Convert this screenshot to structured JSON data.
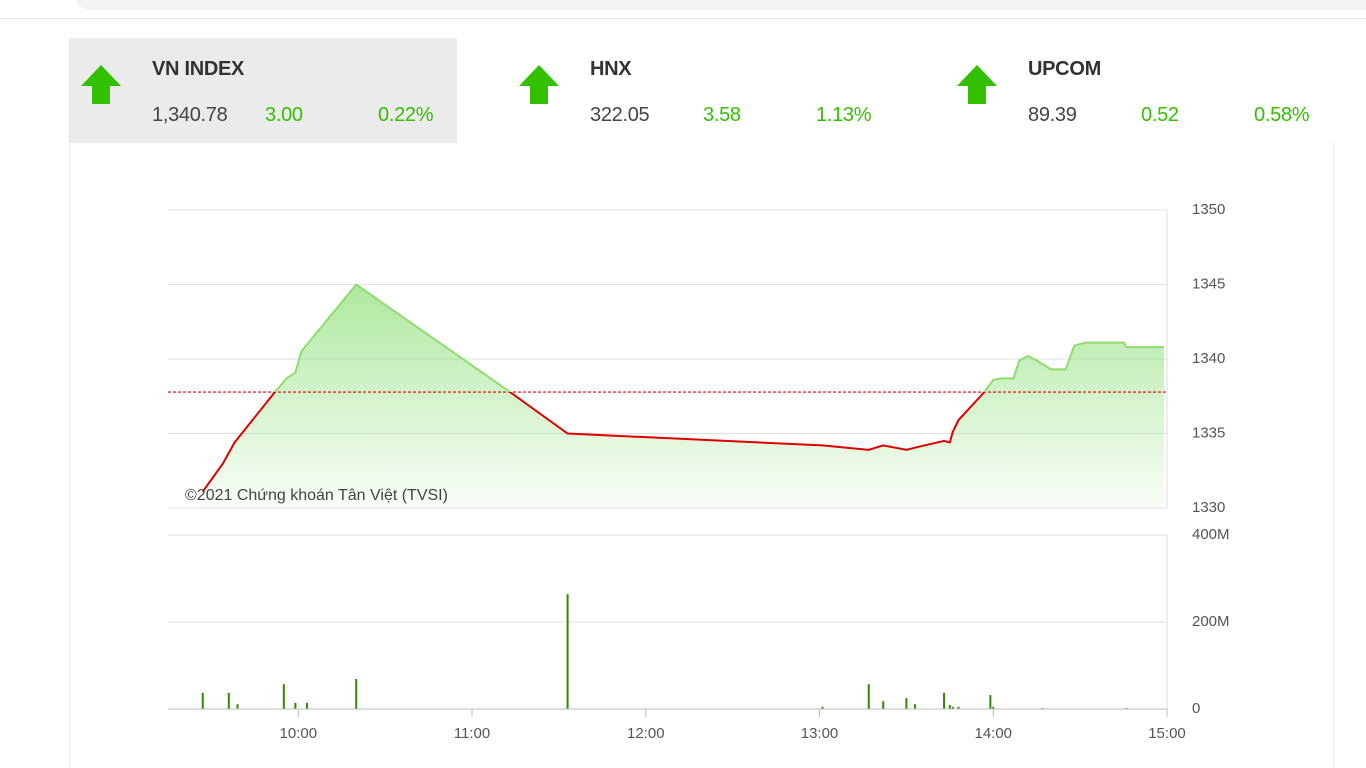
{
  "indices": [
    {
      "name": "VN INDEX",
      "value": "1,340.78",
      "change": "3.00",
      "percent": "0.22%"
    },
    {
      "name": "HNX",
      "value": "322.05",
      "change": "3.58",
      "percent": "1.13%"
    },
    {
      "name": "UPCOM",
      "value": "89.39",
      "change": "0.52",
      "percent": "0.58%"
    }
  ],
  "chart_data": [
    {
      "type": "area",
      "annotation": "©2021 Chứng khoán Tân Việt (TVSI)",
      "x": [
        "09:27",
        "09:34",
        "09:38",
        "09:52",
        "09:56",
        "09:59",
        "10:01",
        "10:20",
        "11:13",
        "11:33",
        "13:01",
        "13:17",
        "13:22",
        "13:30",
        "13:34",
        "13:43",
        "13:45",
        "13:46",
        "13:48",
        "13:57",
        "14:00",
        "14:03",
        "14:07",
        "14:09",
        "14:12",
        "14:15",
        "14:20",
        "14:25",
        "14:28",
        "14:32",
        "14:45",
        "14:46",
        "14:59"
      ],
      "values": [
        1331.1,
        1333.0,
        1334.4,
        1337.8,
        1338.7,
        1339.1,
        1340.5,
        1345.0,
        1337.8,
        1335.0,
        1334.2,
        1333.9,
        1334.2,
        1333.9,
        1334.1,
        1334.5,
        1334.4,
        1335.1,
        1335.9,
        1337.8,
        1338.6,
        1338.7,
        1338.7,
        1339.9,
        1340.2,
        1339.9,
        1339.3,
        1339.3,
        1340.9,
        1341.1,
        1341.1,
        1340.8,
        1340.8
      ],
      "reference": 1337.78,
      "xlim": [
        "09:15",
        "15:00"
      ],
      "ylim": [
        1330,
        1350
      ],
      "yticks": [
        1330,
        1335,
        1340,
        1345,
        1350
      ],
      "colors": {
        "up": "#8fdc6e",
        "down": "#e00000",
        "fill": "#8fe07a",
        "reference": "#e00000"
      },
      "grid": true
    },
    {
      "type": "bar",
      "x": [
        "09:27",
        "09:36",
        "09:39",
        "09:55",
        "09:59",
        "10:03",
        "10:20",
        "11:33",
        "13:01",
        "13:17",
        "13:22",
        "13:30",
        "13:33",
        "13:43",
        "13:45",
        "13:46",
        "13:48",
        "13:59",
        "14:00",
        "14:17",
        "14:46"
      ],
      "values": [
        37,
        37,
        11,
        57,
        14,
        14,
        69,
        264,
        5,
        57,
        18,
        25,
        11,
        37,
        9,
        5,
        5,
        32,
        5,
        2,
        2
      ],
      "xlim": [
        "09:15",
        "15:00"
      ],
      "xticks": [
        "10:00",
        "11:00",
        "12:00",
        "13:00",
        "14:00",
        "15:00"
      ],
      "ylim": [
        0,
        400
      ],
      "yticks": [
        0,
        {
          "value": 200,
          "label": "200M"
        },
        {
          "value": 400,
          "label": "400M"
        }
      ],
      "color": "#2e8b00",
      "grid": true
    }
  ]
}
